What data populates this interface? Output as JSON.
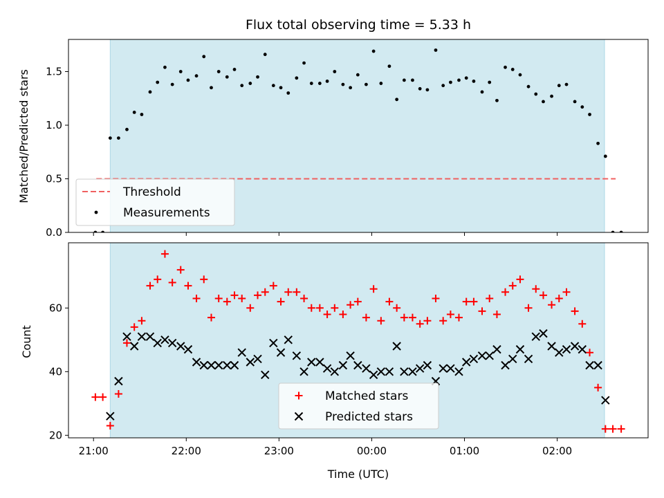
{
  "colors": {
    "span": "#add8e6",
    "threshold": "#f06060",
    "measurement": "#000000",
    "matched": "#ff0000",
    "predicted": "#000000"
  },
  "chart_data": [
    {
      "type": "scatter",
      "title": "Flux total observing time = 5.33 h",
      "xlabel": "",
      "ylabel": "Matched/Predicted stars",
      "xlim": [
        -0.27,
        5.98
      ],
      "ylim": [
        0,
        1.8
      ],
      "yticks": [
        0.0,
        0.5,
        1.0,
        1.5
      ],
      "ytick_labels": [
        "0.0",
        "0.5",
        "1.0",
        "1.5"
      ],
      "xticks": [
        0,
        1,
        2,
        3,
        4,
        5
      ],
      "shaded_span": [
        0.18,
        5.51
      ],
      "threshold": {
        "name": "Threshold",
        "value": 0.5,
        "x_range": [
          0.03,
          5.63
        ]
      },
      "legend_position": "lower-left",
      "series": [
        {
          "name": "Measurements",
          "points": [
            [
              0.02,
              0.0
            ],
            [
              0.1,
              0.0
            ],
            [
              0.18,
              0.88
            ],
            [
              0.27,
              0.88
            ],
            [
              0.36,
              0.96
            ],
            [
              0.44,
              1.12
            ],
            [
              0.52,
              1.1
            ],
            [
              0.61,
              1.31
            ],
            [
              0.69,
              1.4
            ],
            [
              0.77,
              1.54
            ],
            [
              0.85,
              1.38
            ],
            [
              0.94,
              1.5
            ],
            [
              1.02,
              1.42
            ],
            [
              1.11,
              1.46
            ],
            [
              1.19,
              1.64
            ],
            [
              1.27,
              1.35
            ],
            [
              1.35,
              1.5
            ],
            [
              1.44,
              1.45
            ],
            [
              1.52,
              1.52
            ],
            [
              1.6,
              1.37
            ],
            [
              1.69,
              1.39
            ],
            [
              1.77,
              1.45
            ],
            [
              1.85,
              1.66
            ],
            [
              1.94,
              1.37
            ],
            [
              2.02,
              1.35
            ],
            [
              2.1,
              1.3
            ],
            [
              2.19,
              1.44
            ],
            [
              2.27,
              1.58
            ],
            [
              2.35,
              1.39
            ],
            [
              2.44,
              1.39
            ],
            [
              2.52,
              1.41
            ],
            [
              2.6,
              1.5
            ],
            [
              2.69,
              1.38
            ],
            [
              2.77,
              1.35
            ],
            [
              2.85,
              1.47
            ],
            [
              2.94,
              1.38
            ],
            [
              3.02,
              1.69
            ],
            [
              3.1,
              1.39
            ],
            [
              3.19,
              1.55
            ],
            [
              3.27,
              1.24
            ],
            [
              3.35,
              1.42
            ],
            [
              3.44,
              1.42
            ],
            [
              3.52,
              1.34
            ],
            [
              3.6,
              1.33
            ],
            [
              3.69,
              1.7
            ],
            [
              3.77,
              1.37
            ],
            [
              3.85,
              1.4
            ],
            [
              3.94,
              1.42
            ],
            [
              4.02,
              1.44
            ],
            [
              4.1,
              1.41
            ],
            [
              4.19,
              1.31
            ],
            [
              4.27,
              1.4
            ],
            [
              4.35,
              1.23
            ],
            [
              4.44,
              1.54
            ],
            [
              4.52,
              1.52
            ],
            [
              4.6,
              1.47
            ],
            [
              4.69,
              1.36
            ],
            [
              4.77,
              1.29
            ],
            [
              4.85,
              1.22
            ],
            [
              4.94,
              1.27
            ],
            [
              5.02,
              1.37
            ],
            [
              5.1,
              1.38
            ],
            [
              5.19,
              1.22
            ],
            [
              5.27,
              1.17
            ],
            [
              5.35,
              1.1
            ],
            [
              5.44,
              0.83
            ],
            [
              5.52,
              0.71
            ],
            [
              5.6,
              0.0
            ],
            [
              5.69,
              0.0
            ]
          ]
        }
      ]
    },
    {
      "type": "scatter",
      "title": "",
      "xlabel": "Time (UTC)",
      "ylabel": "Count",
      "xlim": [
        -0.27,
        5.98
      ],
      "ylim": [
        19.2,
        80.5
      ],
      "yticks": [
        20,
        40,
        60
      ],
      "ytick_labels": [
        "20",
        "40",
        "60"
      ],
      "xticks": [
        0,
        1,
        2,
        3,
        4,
        5
      ],
      "xtick_labels": [
        "21:00",
        "22:00",
        "23:00",
        "00:00",
        "01:00",
        "02:00"
      ],
      "shaded_span": [
        0.18,
        5.51
      ],
      "legend_position": "lower-center",
      "series": [
        {
          "name": "Matched stars",
          "marker": "plus",
          "points": [
            [
              0.02,
              32
            ],
            [
              0.1,
              32
            ],
            [
              0.18,
              23
            ],
            [
              0.27,
              33
            ],
            [
              0.36,
              49
            ],
            [
              0.44,
              54
            ],
            [
              0.52,
              56
            ],
            [
              0.61,
              67
            ],
            [
              0.69,
              69
            ],
            [
              0.77,
              77
            ],
            [
              0.85,
              68
            ],
            [
              0.94,
              72
            ],
            [
              1.02,
              67
            ],
            [
              1.11,
              63
            ],
            [
              1.19,
              69
            ],
            [
              1.27,
              57
            ],
            [
              1.35,
              63
            ],
            [
              1.44,
              62
            ],
            [
              1.52,
              64
            ],
            [
              1.6,
              63
            ],
            [
              1.69,
              60
            ],
            [
              1.77,
              64
            ],
            [
              1.85,
              65
            ],
            [
              1.94,
              67
            ],
            [
              2.02,
              62
            ],
            [
              2.1,
              65
            ],
            [
              2.19,
              65
            ],
            [
              2.27,
              63
            ],
            [
              2.35,
              60
            ],
            [
              2.44,
              60
            ],
            [
              2.52,
              58
            ],
            [
              2.6,
              60
            ],
            [
              2.69,
              58
            ],
            [
              2.77,
              61
            ],
            [
              2.85,
              62
            ],
            [
              2.94,
              57
            ],
            [
              3.02,
              66
            ],
            [
              3.1,
              56
            ],
            [
              3.19,
              62
            ],
            [
              3.27,
              60
            ],
            [
              3.35,
              57
            ],
            [
              3.44,
              57
            ],
            [
              3.52,
              55
            ],
            [
              3.6,
              56
            ],
            [
              3.69,
              63
            ],
            [
              3.77,
              56
            ],
            [
              3.85,
              58
            ],
            [
              3.94,
              57
            ],
            [
              4.02,
              62
            ],
            [
              4.1,
              62
            ],
            [
              4.19,
              59
            ],
            [
              4.27,
              63
            ],
            [
              4.35,
              58
            ],
            [
              4.44,
              65
            ],
            [
              4.52,
              67
            ],
            [
              4.6,
              69
            ],
            [
              4.69,
              60
            ],
            [
              4.77,
              66
            ],
            [
              4.85,
              64
            ],
            [
              4.94,
              61
            ],
            [
              5.02,
              63
            ],
            [
              5.1,
              65
            ],
            [
              5.19,
              59
            ],
            [
              5.27,
              55
            ],
            [
              5.35,
              46
            ],
            [
              5.44,
              35
            ],
            [
              5.52,
              22
            ],
            [
              5.6,
              22
            ],
            [
              5.69,
              22
            ]
          ]
        },
        {
          "name": "Predicted stars",
          "marker": "x",
          "points": [
            [
              0.18,
              26
            ],
            [
              0.27,
              37
            ],
            [
              0.36,
              51
            ],
            [
              0.44,
              48
            ],
            [
              0.52,
              51
            ],
            [
              0.61,
              51
            ],
            [
              0.69,
              49
            ],
            [
              0.77,
              50
            ],
            [
              0.85,
              49
            ],
            [
              0.94,
              48
            ],
            [
              1.02,
              47
            ],
            [
              1.11,
              43
            ],
            [
              1.19,
              42
            ],
            [
              1.27,
              42
            ],
            [
              1.35,
              42
            ],
            [
              1.44,
              42
            ],
            [
              1.52,
              42
            ],
            [
              1.6,
              46
            ],
            [
              1.69,
              43
            ],
            [
              1.77,
              44
            ],
            [
              1.85,
              39
            ],
            [
              1.94,
              49
            ],
            [
              2.02,
              46
            ],
            [
              2.1,
              50
            ],
            [
              2.19,
              45
            ],
            [
              2.27,
              40
            ],
            [
              2.35,
              43
            ],
            [
              2.44,
              43
            ],
            [
              2.52,
              41
            ],
            [
              2.6,
              40
            ],
            [
              2.69,
              42
            ],
            [
              2.77,
              45
            ],
            [
              2.85,
              42
            ],
            [
              2.94,
              41
            ],
            [
              3.02,
              39
            ],
            [
              3.1,
              40
            ],
            [
              3.19,
              40
            ],
            [
              3.27,
              48
            ],
            [
              3.35,
              40
            ],
            [
              3.44,
              40
            ],
            [
              3.52,
              41
            ],
            [
              3.6,
              42
            ],
            [
              3.69,
              37
            ],
            [
              3.77,
              41
            ],
            [
              3.85,
              41
            ],
            [
              3.94,
              40
            ],
            [
              4.02,
              43
            ],
            [
              4.1,
              44
            ],
            [
              4.19,
              45
            ],
            [
              4.27,
              45
            ],
            [
              4.35,
              47
            ],
            [
              4.44,
              42
            ],
            [
              4.52,
              44
            ],
            [
              4.6,
              47
            ],
            [
              4.69,
              44
            ],
            [
              4.77,
              51
            ],
            [
              4.85,
              52
            ],
            [
              4.94,
              48
            ],
            [
              5.02,
              46
            ],
            [
              5.1,
              47
            ],
            [
              5.19,
              48
            ],
            [
              5.27,
              47
            ],
            [
              5.35,
              42
            ],
            [
              5.44,
              42
            ],
            [
              5.52,
              31
            ]
          ]
        }
      ]
    }
  ]
}
